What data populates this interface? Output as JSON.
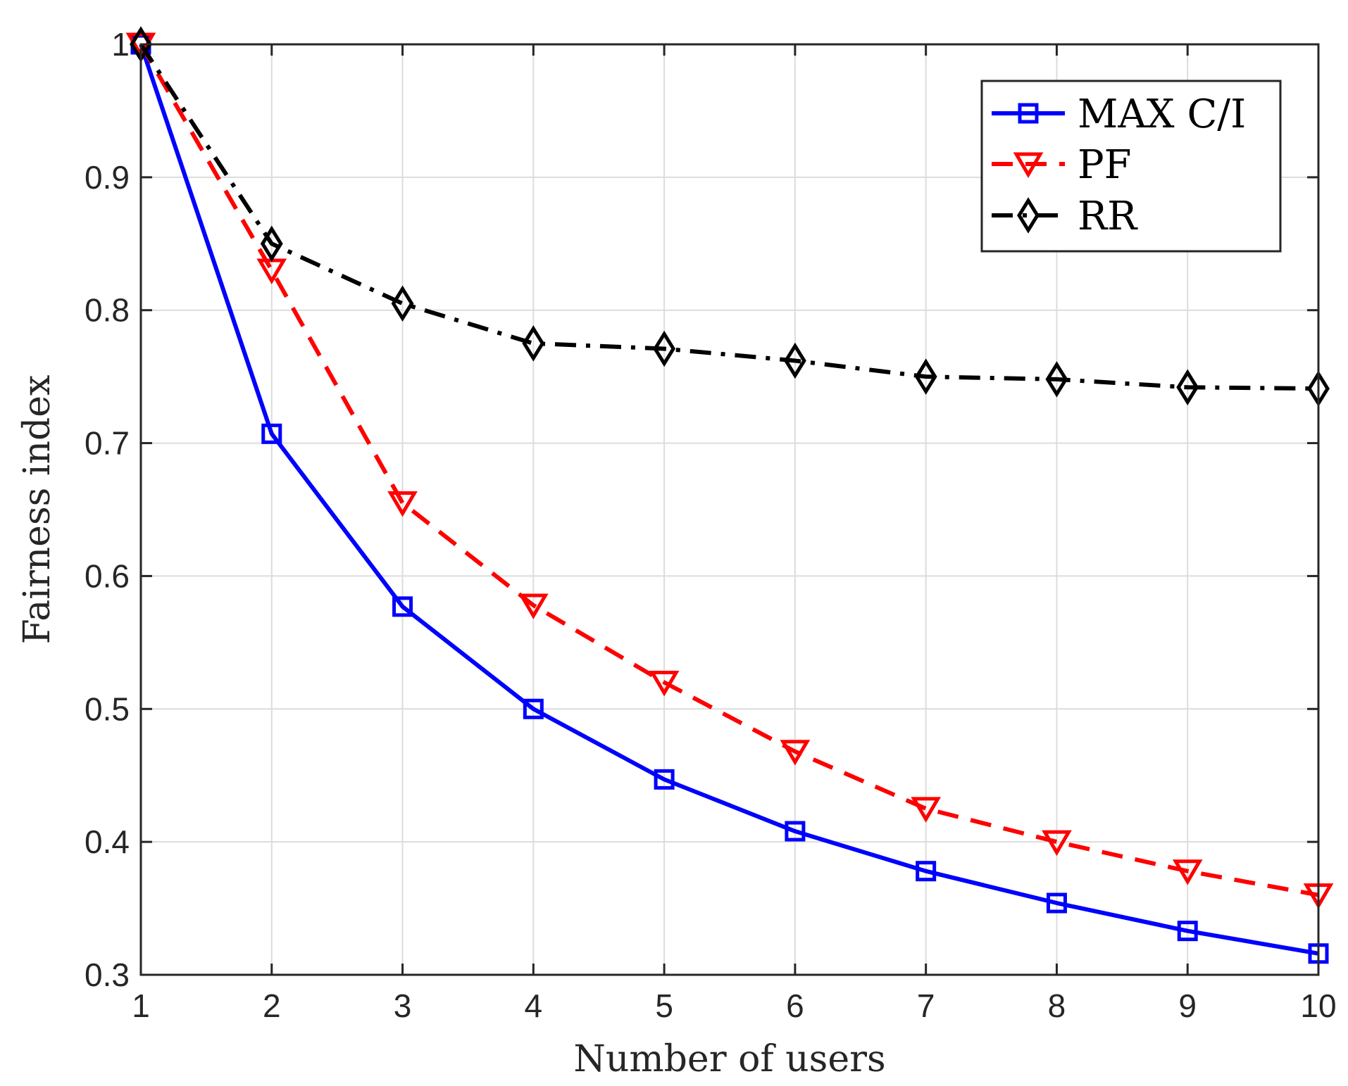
{
  "chart_data": {
    "type": "line",
    "title": "",
    "xlabel": "Number of users",
    "ylabel": "Fairness index",
    "x": [
      1,
      2,
      3,
      4,
      5,
      6,
      7,
      8,
      9,
      10
    ],
    "xlim": [
      1,
      10
    ],
    "ylim": [
      0.3,
      1.0
    ],
    "xticks": [
      1,
      2,
      3,
      4,
      5,
      6,
      7,
      8,
      9,
      10
    ],
    "xtick_labels": [
      "1",
      "2",
      "3",
      "4",
      "5",
      "6",
      "7",
      "8",
      "9",
      "10"
    ],
    "yticks": [
      0.3,
      0.4,
      0.5,
      0.6,
      0.7,
      0.8,
      0.9,
      1.0
    ],
    "ytick_labels": [
      "0.3",
      "0.4",
      "0.5",
      "0.6",
      "0.7",
      "0.8",
      "0.9",
      "1"
    ],
    "grid": true,
    "legend_position": "top-right",
    "series": [
      {
        "name": "MAX C/I",
        "color": "#0000ff",
        "line_style": "solid",
        "marker": "square",
        "values": [
          1.0,
          0.707,
          0.577,
          0.5,
          0.447,
          0.408,
          0.378,
          0.354,
          0.333,
          0.316
        ]
      },
      {
        "name": "PF",
        "color": "#ff0000",
        "line_style": "dashed",
        "marker": "triangle-down",
        "values": [
          1.0,
          0.83,
          0.655,
          0.578,
          0.52,
          0.468,
          0.425,
          0.4,
          0.378,
          0.36
        ]
      },
      {
        "name": "RR",
        "color": "#000000",
        "line_style": "dash-dot",
        "marker": "diamond",
        "values": [
          1.0,
          0.85,
          0.805,
          0.775,
          0.771,
          0.762,
          0.75,
          0.748,
          0.742,
          0.741
        ]
      }
    ]
  }
}
